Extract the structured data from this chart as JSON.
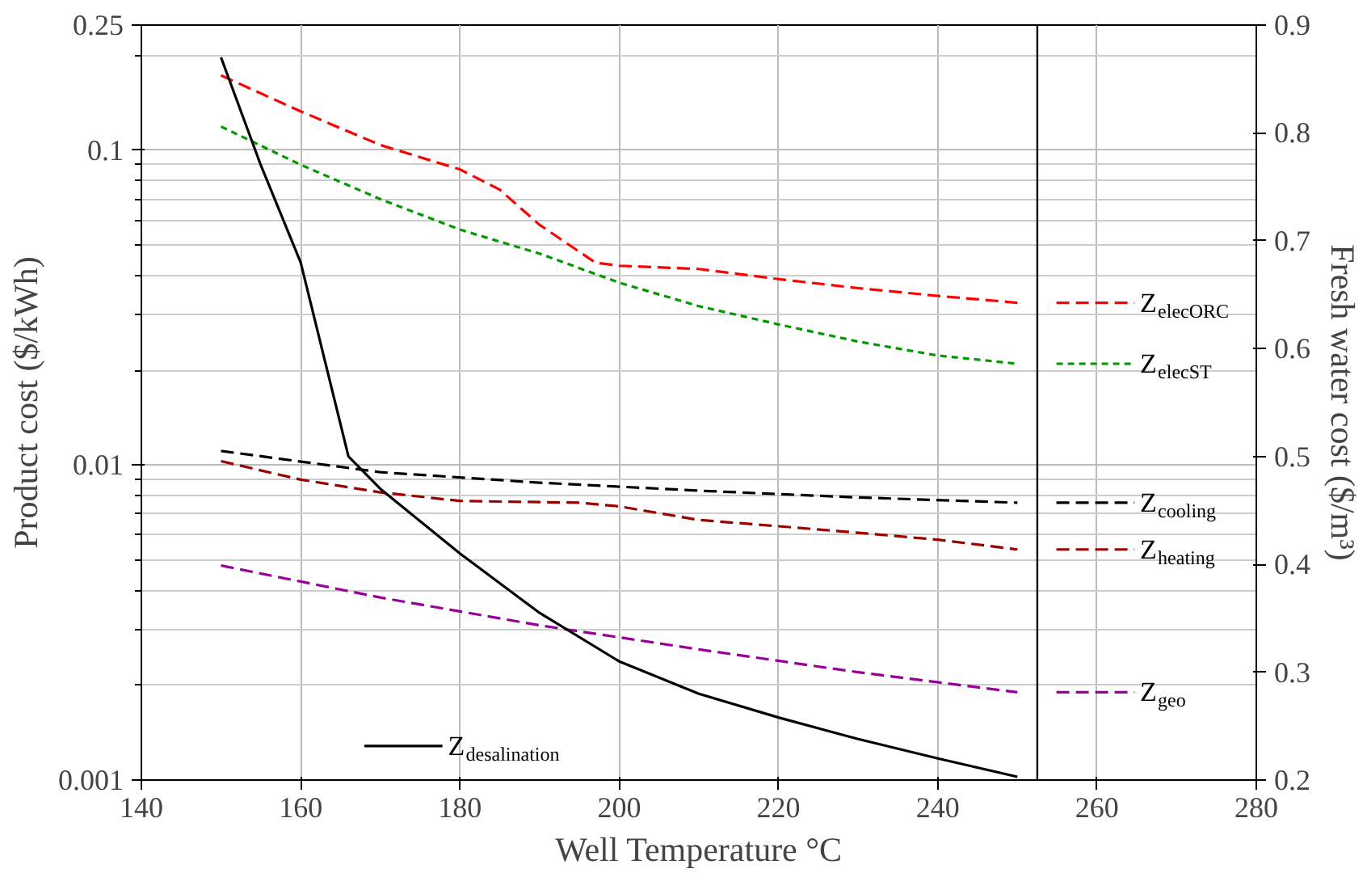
{
  "chart_data": {
    "type": "line",
    "xlabel": "Well Temperature °C",
    "ylabel": "Product cost ($/kWh)",
    "y2label": "Fresh water cost ($/m³)",
    "xlim": [
      140,
      280
    ],
    "xticks": [
      140,
      160,
      180,
      200,
      220,
      240,
      260,
      280
    ],
    "ylim": [
      0.001,
      0.25
    ],
    "yticks": [
      0.001,
      0.01,
      0.1,
      0.25
    ],
    "y2lim": [
      0.2,
      0.9
    ],
    "y2ticks": [
      0.2,
      0.3,
      0.4,
      0.5,
      0.6,
      0.7,
      0.8,
      0.9
    ],
    "log": "y",
    "grid": true,
    "marker": "none",
    "legend": "right",
    "ref_lines": [
      {
        "axis": "x",
        "value": 252.5,
        "color": "#000000"
      }
    ],
    "series": [
      {
        "name": "Z$_{elecORC}$",
        "color": "#ff0000",
        "line_style": "dashed",
        "x": [
          150,
          160,
          170,
          180,
          185,
          190,
          197,
          200,
          210,
          220,
          230,
          240,
          250
        ],
        "values": [
          0.173,
          0.133,
          0.104,
          0.087,
          0.075,
          0.058,
          0.044,
          0.043,
          0.042,
          0.039,
          0.0365,
          0.0345,
          0.0328
        ]
      },
      {
        "name": "Z$_{elecST}$",
        "color": "#009900",
        "line_style": "dotted",
        "x": [
          150,
          160,
          170,
          180,
          190,
          200,
          210,
          220,
          230,
          240,
          250
        ],
        "values": [
          0.119,
          0.09,
          0.07,
          0.056,
          0.047,
          0.038,
          0.032,
          0.028,
          0.0247,
          0.0223,
          0.021
        ]
      },
      {
        "name": "Z$_{cooling}$",
        "color": "#000000",
        "line_style": "dashed",
        "x": [
          150,
          170,
          190,
          210,
          230,
          250
        ],
        "values": [
          0.0111,
          0.0095,
          0.0088,
          0.0083,
          0.0079,
          0.0076
        ]
      },
      {
        "name": "Z$_{heating}$",
        "color": "#990000",
        "line_style": "dashed",
        "x": [
          150,
          160,
          170,
          180,
          195,
          200,
          210,
          220,
          230,
          240,
          250
        ],
        "values": [
          0.0103,
          0.009,
          0.0082,
          0.0077,
          0.0076,
          0.0074,
          0.0067,
          0.0064,
          0.0061,
          0.0058,
          0.0054
        ]
      },
      {
        "name": "Z$_{geo}$",
        "color": "#990099",
        "line_style": "dashed",
        "x": [
          150,
          170,
          190,
          210,
          230,
          250
        ],
        "values": [
          0.0048,
          0.0038,
          0.0031,
          0.0026,
          0.0022,
          0.0019
        ]
      },
      {
        "name": "Z$_{desalination}$",
        "color": "#000000",
        "line_style": "solid",
        "axis": "y2",
        "x": [
          150,
          155,
          160,
          166,
          170,
          175,
          180,
          190,
          200,
          210,
          220,
          230,
          240,
          250
        ],
        "values": [
          0.87,
          0.77,
          0.68,
          0.5,
          0.47,
          0.44,
          0.41,
          0.355,
          0.31,
          0.28,
          0.258,
          0.238,
          0.22,
          0.203
        ]
      }
    ]
  }
}
